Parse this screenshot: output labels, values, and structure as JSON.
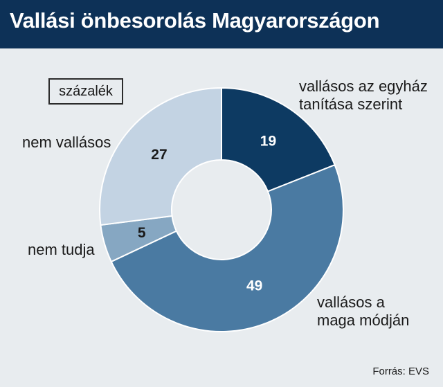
{
  "header": {
    "title": "Vallási önbesorolás Magyarországon"
  },
  "unit_label": "százalék",
  "source": "Forrás: EVS",
  "chart_data": {
    "type": "pie",
    "title": "Vallási önbesorolás Magyarországon",
    "unit": "százalék",
    "slices": [
      {
        "label_lines": [
          "vallásos az egyház",
          "tanítása szerint"
        ],
        "value": 19,
        "color": "#0d3a62",
        "text_color": "#ffffff"
      },
      {
        "label_lines": [
          "vallásos a",
          "maga módján"
        ],
        "value": 49,
        "color": "#4a7aa2",
        "text_color": "#ffffff"
      },
      {
        "label_lines": [
          "nem tudja"
        ],
        "value": 5,
        "color": "#86a7c2",
        "text_color": "#1a1a1a"
      },
      {
        "label_lines": [
          "nem vallásos"
        ],
        "value": 27,
        "color": "#c3d3e3",
        "text_color": "#1a1a1a"
      }
    ]
  }
}
